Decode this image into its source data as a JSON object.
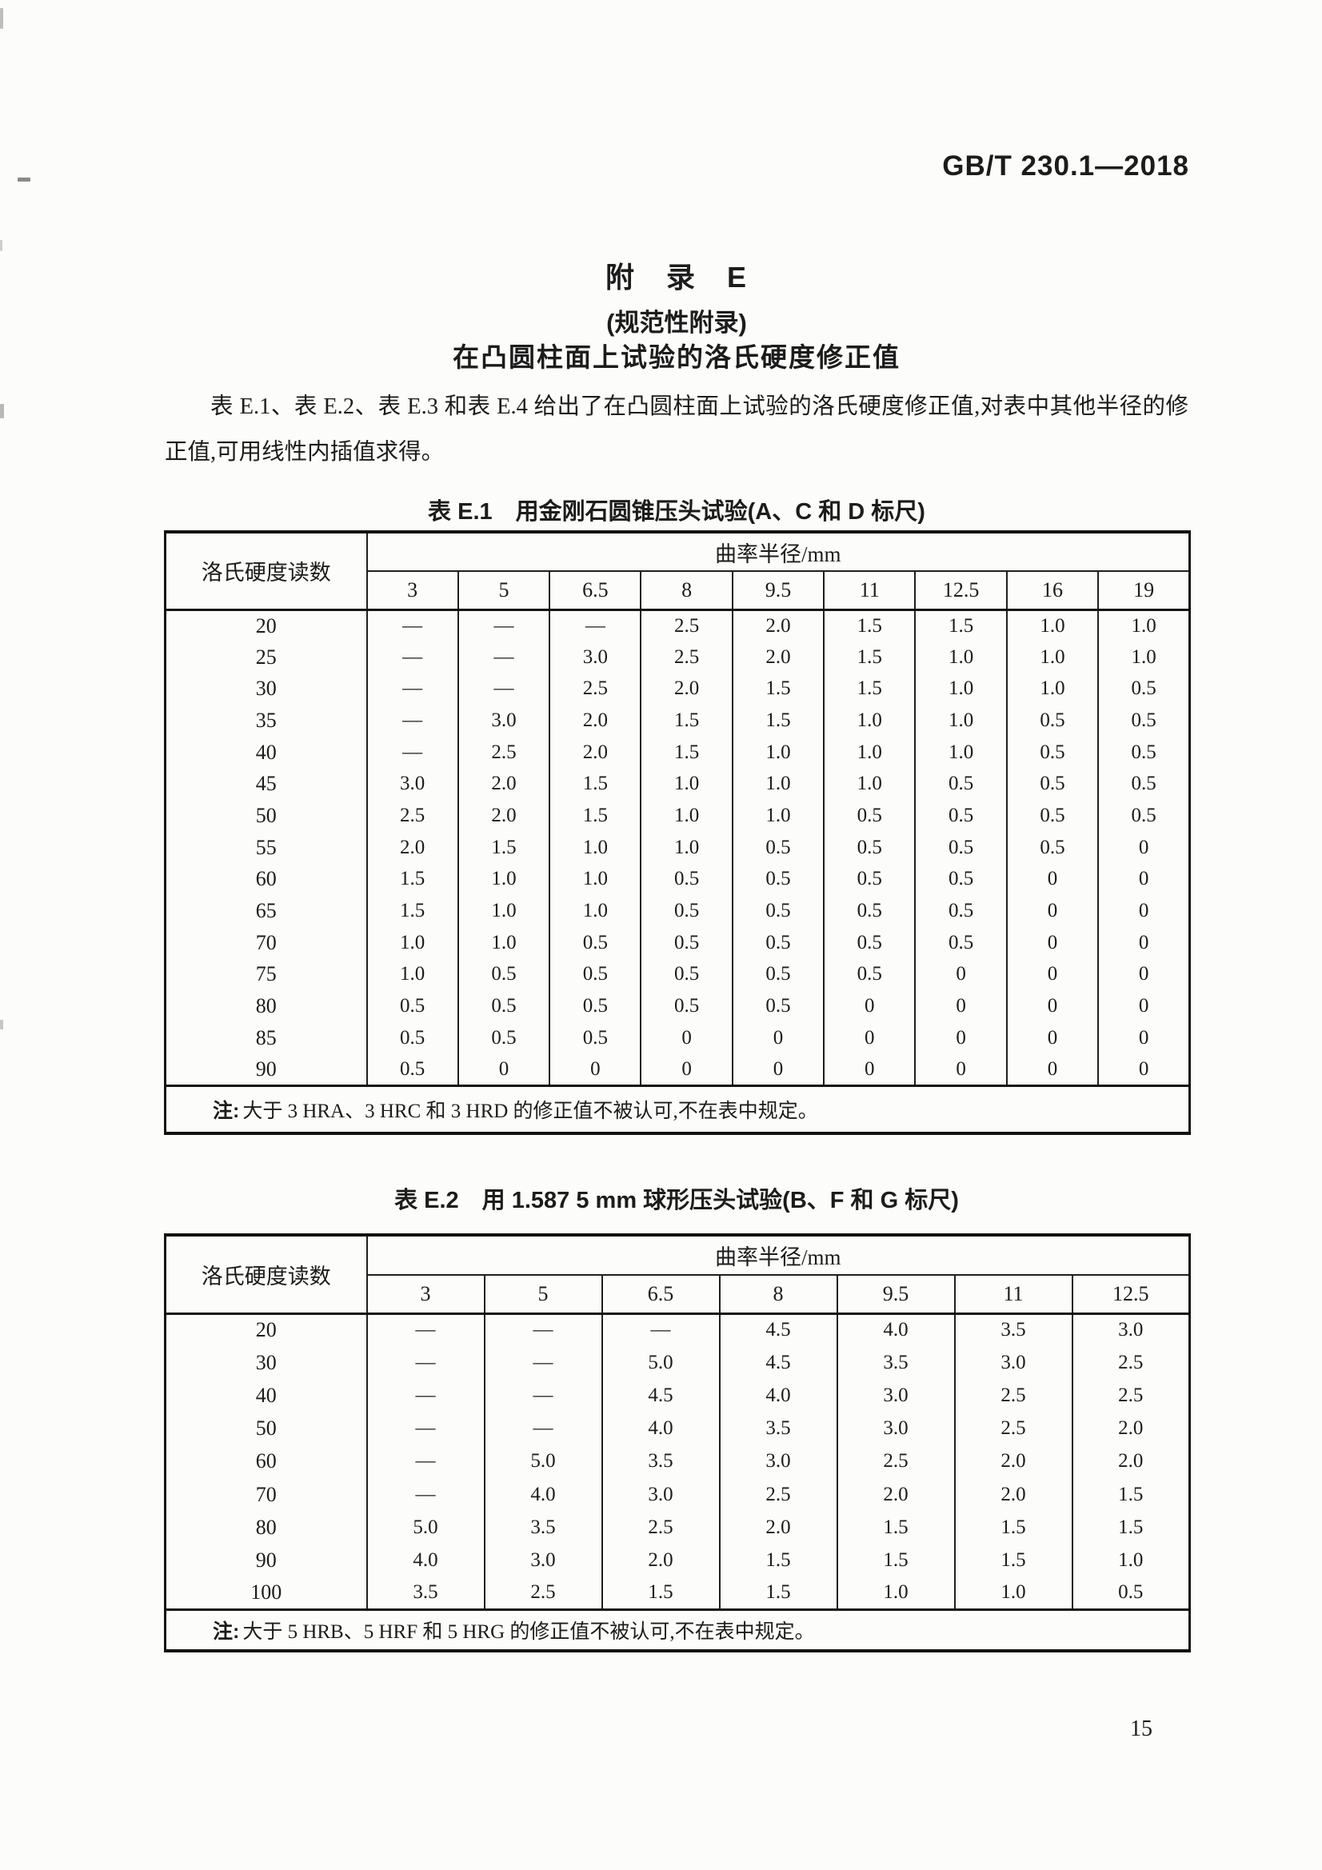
{
  "page": {
    "standard_code": "GB/T 230.1—2018",
    "page_number": "15"
  },
  "appendix": {
    "title": "附　录　E",
    "subtitle": "(规范性附录)",
    "heading": "在凸圆柱面上试验的洛氏硬度修正值",
    "intro": "表 E.1、表 E.2、表 E.3 和表 E.4 给出了在凸圆柱面上试验的洛氏硬度修正值,对表中其他半径的修正值,可用线性内插值求得。"
  },
  "tables": {
    "e1": {
      "caption": "表 E.1　用金刚石圆锥压头试验(A、C 和 D 标尺)",
      "row_header": "洛氏硬度读数",
      "span_header": "曲率半径/mm",
      "columns": [
        "3",
        "5",
        "6.5",
        "8",
        "9.5",
        "11",
        "12.5",
        "16",
        "19"
      ],
      "rows": [
        {
          "label": "20",
          "values": [
            "—",
            "—",
            "—",
            "2.5",
            "2.0",
            "1.5",
            "1.5",
            "1.0",
            "1.0"
          ]
        },
        {
          "label": "25",
          "values": [
            "—",
            "—",
            "3.0",
            "2.5",
            "2.0",
            "1.5",
            "1.0",
            "1.0",
            "1.0"
          ]
        },
        {
          "label": "30",
          "values": [
            "—",
            "—",
            "2.5",
            "2.0",
            "1.5",
            "1.5",
            "1.0",
            "1.0",
            "0.5"
          ]
        },
        {
          "label": "35",
          "values": [
            "—",
            "3.0",
            "2.0",
            "1.5",
            "1.5",
            "1.0",
            "1.0",
            "0.5",
            "0.5"
          ]
        },
        {
          "label": "40",
          "values": [
            "—",
            "2.5",
            "2.0",
            "1.5",
            "1.0",
            "1.0",
            "1.0",
            "0.5",
            "0.5"
          ]
        },
        {
          "label": "45",
          "values": [
            "3.0",
            "2.0",
            "1.5",
            "1.0",
            "1.0",
            "1.0",
            "0.5",
            "0.5",
            "0.5"
          ]
        },
        {
          "label": "50",
          "values": [
            "2.5",
            "2.0",
            "1.5",
            "1.0",
            "1.0",
            "0.5",
            "0.5",
            "0.5",
            "0.5"
          ]
        },
        {
          "label": "55",
          "values": [
            "2.0",
            "1.5",
            "1.0",
            "1.0",
            "0.5",
            "0.5",
            "0.5",
            "0.5",
            "0"
          ]
        },
        {
          "label": "60",
          "values": [
            "1.5",
            "1.0",
            "1.0",
            "0.5",
            "0.5",
            "0.5",
            "0.5",
            "0",
            "0"
          ]
        },
        {
          "label": "65",
          "values": [
            "1.5",
            "1.0",
            "1.0",
            "0.5",
            "0.5",
            "0.5",
            "0.5",
            "0",
            "0"
          ]
        },
        {
          "label": "70",
          "values": [
            "1.0",
            "1.0",
            "0.5",
            "0.5",
            "0.5",
            "0.5",
            "0.5",
            "0",
            "0"
          ]
        },
        {
          "label": "75",
          "values": [
            "1.0",
            "0.5",
            "0.5",
            "0.5",
            "0.5",
            "0.5",
            "0",
            "0",
            "0"
          ]
        },
        {
          "label": "80",
          "values": [
            "0.5",
            "0.5",
            "0.5",
            "0.5",
            "0.5",
            "0",
            "0",
            "0",
            "0"
          ]
        },
        {
          "label": "85",
          "values": [
            "0.5",
            "0.5",
            "0.5",
            "0",
            "0",
            "0",
            "0",
            "0",
            "0"
          ]
        },
        {
          "label": "90",
          "values": [
            "0.5",
            "0",
            "0",
            "0",
            "0",
            "0",
            "0",
            "0",
            "0"
          ]
        }
      ],
      "note_label": "注:",
      "note": "大于 3 HRA、3 HRC 和 3 HRD 的修正值不被认可,不在表中规定。"
    },
    "e2": {
      "caption": "表 E.2　用 1.587 5 mm 球形压头试验(B、F 和 G 标尺)",
      "row_header": "洛氏硬度读数",
      "span_header": "曲率半径/mm",
      "columns": [
        "3",
        "5",
        "6.5",
        "8",
        "9.5",
        "11",
        "12.5"
      ],
      "rows": [
        {
          "label": "20",
          "values": [
            "—",
            "—",
            "—",
            "4.5",
            "4.0",
            "3.5",
            "3.0"
          ]
        },
        {
          "label": "30",
          "values": [
            "—",
            "—",
            "5.0",
            "4.5",
            "3.5",
            "3.0",
            "2.5"
          ]
        },
        {
          "label": "40",
          "values": [
            "—",
            "—",
            "4.5",
            "4.0",
            "3.0",
            "2.5",
            "2.5"
          ]
        },
        {
          "label": "50",
          "values": [
            "—",
            "—",
            "4.0",
            "3.5",
            "3.0",
            "2.5",
            "2.0"
          ]
        },
        {
          "label": "60",
          "values": [
            "—",
            "5.0",
            "3.5",
            "3.0",
            "2.5",
            "2.0",
            "2.0"
          ]
        },
        {
          "label": "70",
          "values": [
            "—",
            "4.0",
            "3.0",
            "2.5",
            "2.0",
            "2.0",
            "1.5"
          ]
        },
        {
          "label": "80",
          "values": [
            "5.0",
            "3.5",
            "2.5",
            "2.0",
            "1.5",
            "1.5",
            "1.5"
          ]
        },
        {
          "label": "90",
          "values": [
            "4.0",
            "3.0",
            "2.0",
            "1.5",
            "1.5",
            "1.5",
            "1.0"
          ]
        },
        {
          "label": "100",
          "values": [
            "3.5",
            "2.5",
            "1.5",
            "1.5",
            "1.0",
            "1.0",
            "0.5"
          ]
        }
      ],
      "note_label": "注:",
      "note": "大于 5 HRB、5 HRF 和 5 HRG 的修正值不被认可,不在表中规定。"
    }
  }
}
